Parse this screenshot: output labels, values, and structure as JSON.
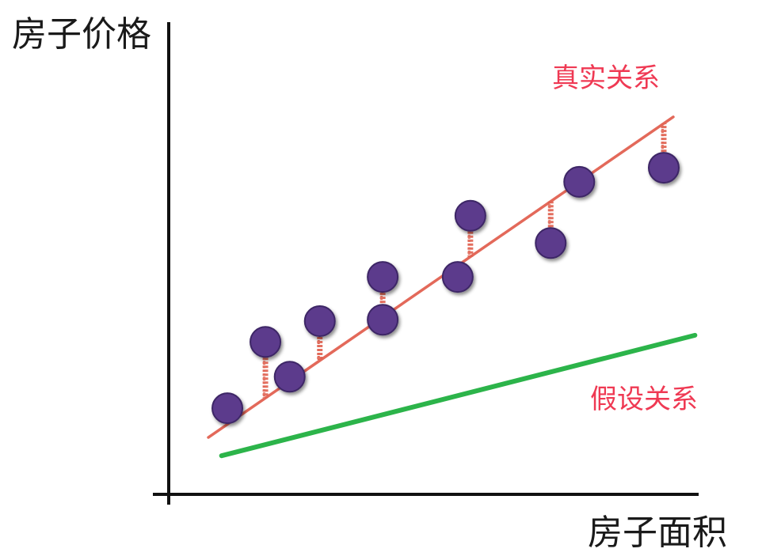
{
  "chart_data": {
    "type": "scatter",
    "title": "",
    "xlabel": "房子面积",
    "ylabel": "房子价格",
    "xlim": [
      0,
      100
    ],
    "ylim": [
      0,
      100
    ],
    "grid": false,
    "points": [
      {
        "x": 11.1,
        "y": 18.3,
        "show_residual": false
      },
      {
        "x": 18.3,
        "y": 32.4,
        "show_residual": true
      },
      {
        "x": 22.9,
        "y": 25.0,
        "show_residual": false
      },
      {
        "x": 28.6,
        "y": 36.8,
        "show_residual": true
      },
      {
        "x": 40.5,
        "y": 46.2,
        "show_residual": true
      },
      {
        "x": 40.5,
        "y": 37.1,
        "show_residual": false
      },
      {
        "x": 54.7,
        "y": 46.2,
        "show_residual": false
      },
      {
        "x": 57.1,
        "y": 59.2,
        "show_residual": true
      },
      {
        "x": 72.3,
        "y": 53.4,
        "show_residual": true
      },
      {
        "x": 77.7,
        "y": 66.4,
        "show_residual": false
      },
      {
        "x": 93.7,
        "y": 69.4,
        "show_residual": true
      }
    ],
    "lines": [
      {
        "name": "真实关系",
        "x": [
          7.5,
          95.5
        ],
        "y": [
          12.1,
          80.2
        ],
        "color": "#e3695a"
      },
      {
        "name": "假设关系",
        "x": [
          10.0,
          99.6
        ],
        "y": [
          8.2,
          33.8
        ],
        "color": "#2cb44a"
      }
    ]
  },
  "colors": {
    "point": "#5b3a8c",
    "point_outline": "#3e2766",
    "residual": "#e0614f",
    "series_label": "#ef3953",
    "axis": "#111111"
  }
}
